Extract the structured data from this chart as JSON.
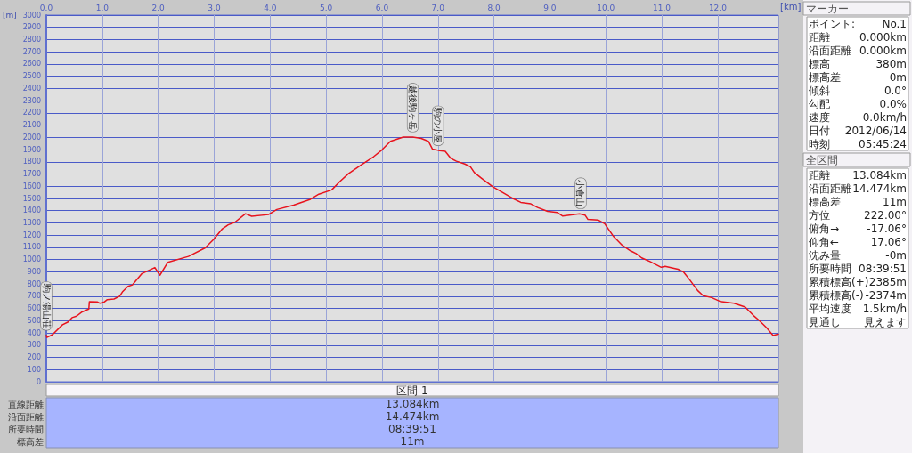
{
  "chart_data": {
    "type": "line",
    "xlabel": "[km]",
    "ylabel": "[m]",
    "xlim": [
      0,
      13.084
    ],
    "ylim": [
      0,
      3000
    ],
    "xticks": [
      {
        "value": 0,
        "label": "0.0"
      },
      {
        "value": 1,
        "label": "1.0"
      },
      {
        "value": 2,
        "label": "2.0"
      },
      {
        "value": 3,
        "label": "3.0"
      },
      {
        "value": 4,
        "label": "4.0"
      },
      {
        "value": 5,
        "label": "5.0"
      },
      {
        "value": 6,
        "label": "6.0"
      },
      {
        "value": 7,
        "label": "7.0"
      },
      {
        "value": 8,
        "label": "8.0"
      },
      {
        "value": 9,
        "label": "9.0"
      },
      {
        "value": 10,
        "label": "10.0"
      },
      {
        "value": 11,
        "label": "11.0"
      },
      {
        "value": 12,
        "label": "12.0"
      }
    ],
    "yticks": [
      0,
      100,
      200,
      300,
      400,
      500,
      600,
      700,
      800,
      900,
      1000,
      1100,
      1200,
      1300,
      1400,
      1500,
      1600,
      1700,
      1800,
      1900,
      2000,
      2100,
      2200,
      2300,
      2400,
      2500,
      2600,
      2700,
      2800,
      2900,
      3000
    ],
    "grid": true,
    "marker": "none",
    "line_style": "solid",
    "series": [
      {
        "color": "#e8141e",
        "x": [
          0,
          0.01,
          0.11,
          0.29,
          0.39,
          0.46,
          0.54,
          0.64,
          0.76,
          0.77,
          0.91,
          0.96,
          1.04,
          1.09,
          1.21,
          1.31,
          1.36,
          1.46,
          1.54,
          1.71,
          1.94,
          2.03,
          2.17,
          2.54,
          2.84,
          2.99,
          3.14,
          3.25,
          3.37,
          3.56,
          3.67,
          3.97,
          4.12,
          4.42,
          4.72,
          4.87,
          5.1,
          5.25,
          5.4,
          5.62,
          5.85,
          6.0,
          6.15,
          6.38,
          6.55,
          6.7,
          6.83,
          6.9,
          7.03,
          7.13,
          7.23,
          7.33,
          7.48,
          7.58,
          7.65,
          7.78,
          7.88,
          7.98,
          8.33,
          8.48,
          8.66,
          8.78,
          8.96,
          9.13,
          9.23,
          9.53,
          9.63,
          9.68,
          9.86,
          9.98,
          10.14,
          10.29,
          10.44,
          10.54,
          10.64,
          10.79,
          10.99,
          11.06,
          11.29,
          11.39,
          11.49,
          11.64,
          11.74,
          11.89,
          12.04,
          12.29,
          12.49,
          12.64,
          12.74,
          12.87,
          12.99,
          13.084
        ],
        "values": [
          380,
          363,
          386,
          467,
          490,
          525,
          537,
          572,
          595,
          655,
          654,
          642,
          654,
          672,
          677,
          700,
          735,
          781,
          793,
          886,
          935,
          872,
          977,
          1026,
          1096,
          1165,
          1249,
          1284,
          1305,
          1375,
          1354,
          1368,
          1410,
          1445,
          1493,
          1535,
          1570,
          1640,
          1703,
          1772,
          1842,
          1898,
          1968,
          2003,
          2003,
          1991,
          1968,
          1905,
          1891,
          1886,
          1828,
          1805,
          1782,
          1759,
          1712,
          1665,
          1630,
          1595,
          1502,
          1468,
          1456,
          1426,
          1394,
          1386,
          1356,
          1375,
          1363,
          1328,
          1324,
          1293,
          1188,
          1118,
          1072,
          1049,
          1014,
          984,
          937,
          944,
          921,
          898,
          840,
          747,
          705,
          689,
          658,
          642,
          612,
          542,
          502,
          444,
          379,
          391
        ]
      }
    ],
    "annotations": [
      {
        "text": "駒ノ湯山荘",
        "x": 0,
        "y": 380
      },
      {
        "text": "越後駒ヶ岳",
        "x": 6.55,
        "y": 2003
      },
      {
        "text": "駒の小屋",
        "x": 7.0,
        "y": 1891
      },
      {
        "text": "小倉山",
        "x": 9.55,
        "y": 1375
      },
      "マーカー",
      "ポイント:",
      "No.1",
      "距離",
      "0.000km",
      "沿面距離",
      "0.000km",
      "標高",
      "380m",
      "標高差",
      "0m",
      "傾斜",
      "0.0°",
      "勾配",
      "0.0%",
      "速度",
      "0.0km/h",
      "日付",
      "2012/06/14",
      "時刻",
      "05:45:24",
      "全区間",
      "距離",
      "13.084km",
      "沿面距離",
      "14.474km",
      "標高差",
      "11m",
      "方位",
      "222.00°",
      "俯角→",
      "-17.06°",
      "仰角←",
      "17.06°",
      "沈み量",
      "-0m",
      "所要時間",
      "08:39:51",
      "累積標高(+)",
      "2385m",
      "累積標高(-)",
      "-2374m",
      "平均速度",
      "1.5km/h",
      "見通し",
      "見えます",
      "区間 1",
      "直線距離",
      "沿面距離",
      "所要時間",
      "標高差",
      "13.084km",
      "14.474km",
      "08:39:51",
      "11m"
    ]
  }
}
